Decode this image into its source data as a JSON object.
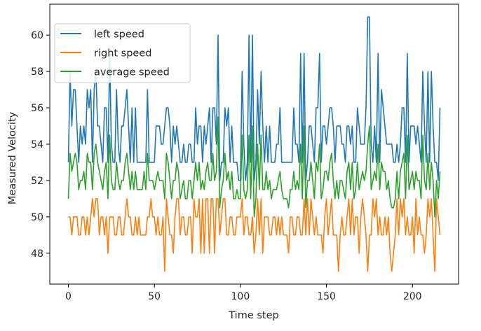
{
  "chart_data": {
    "type": "line",
    "xlabel": "Time step",
    "ylabel": "Measured Velocity",
    "xlim": [
      -10.8,
      226.8
    ],
    "ylim": [
      46.3,
      61.7
    ],
    "xticks": [
      0,
      50,
      100,
      150,
      200
    ],
    "yticks": [
      48,
      50,
      52,
      54,
      56,
      58,
      60
    ],
    "grid": false,
    "legend_position": "top-left",
    "series": [
      {
        "name": "left speed",
        "color": "#1f77b4",
        "values": [
          53,
          58,
          55,
          57,
          57,
          55,
          53,
          55,
          54,
          55,
          54,
          57,
          56,
          57,
          53,
          57,
          58,
          55,
          55,
          54,
          53,
          56,
          56,
          53,
          59,
          54,
          53,
          53,
          57,
          54,
          53,
          55,
          55,
          56,
          57,
          55,
          53,
          56,
          53,
          56,
          53,
          53,
          53,
          53,
          53,
          53,
          57,
          53,
          53,
          53,
          53,
          55,
          55,
          55,
          54,
          54,
          55,
          56,
          56,
          55,
          53,
          55,
          54,
          55,
          54,
          53,
          53,
          54,
          53,
          53,
          54,
          54,
          53,
          53,
          56,
          54,
          55,
          55,
          53,
          55,
          54,
          55,
          56,
          53,
          56,
          56,
          54,
          60,
          52,
          53,
          53,
          56,
          55,
          56,
          53,
          55,
          53,
          53,
          53,
          52,
          52,
          58,
          54,
          52,
          53,
          60,
          53,
          60,
          52,
          53,
          57,
          54,
          58,
          55,
          53,
          55,
          53,
          55,
          53,
          53,
          53,
          54,
          54,
          56,
          53,
          53,
          53,
          53,
          53,
          53,
          53,
          56,
          54,
          54,
          53,
          59,
          53,
          59,
          52,
          53,
          55,
          55,
          54,
          53,
          56,
          56,
          59,
          53,
          55,
          55,
          54,
          55,
          56,
          56,
          55,
          53,
          55,
          55,
          55,
          54,
          54,
          53,
          55,
          55,
          54,
          55,
          53,
          53,
          56,
          55,
          54,
          54,
          54,
          56,
          61,
          61,
          54,
          53,
          55,
          53,
          59,
          53,
          57,
          56,
          55,
          54,
          54,
          54,
          54,
          53,
          53,
          54,
          53,
          54,
          56,
          56,
          53,
          59,
          53,
          55,
          55,
          55,
          54,
          55,
          54,
          53,
          58,
          55,
          53,
          58,
          53,
          58,
          55,
          53,
          53,
          52,
          56
        ]
      },
      {
        "name": "right speed",
        "color": "#ff7f0e",
        "values": [
          50,
          50,
          49,
          50,
          50,
          50,
          49,
          49,
          50,
          50,
          49,
          50,
          49,
          50,
          51,
          50,
          51,
          51,
          49,
          50,
          50,
          49,
          50,
          48,
          50,
          50,
          50,
          49,
          49,
          50,
          50,
          49,
          49,
          50,
          51,
          50,
          50,
          49,
          49,
          50,
          49,
          50,
          49,
          49,
          49,
          49,
          50,
          50,
          51,
          50,
          50,
          49,
          50,
          49,
          49,
          50,
          47,
          51,
          50,
          49,
          49,
          48,
          50,
          51,
          51,
          49,
          50,
          50,
          49,
          49,
          50,
          50,
          48,
          51,
          50,
          50,
          51,
          48,
          51,
          48,
          51,
          51,
          48,
          51,
          51,
          48,
          51,
          51,
          49,
          50,
          51,
          51,
          49,
          49,
          50,
          50,
          49,
          49,
          50,
          50,
          50,
          51,
          49,
          50,
          50,
          49,
          49,
          50,
          48,
          49,
          51,
          49,
          51,
          48,
          50,
          50,
          50,
          49,
          49,
          50,
          50,
          49,
          50,
          49,
          50,
          49,
          49,
          49,
          48,
          50,
          50,
          49,
          49,
          50,
          50,
          49,
          49,
          51,
          49,
          51,
          49,
          51,
          50,
          49,
          50,
          49,
          49,
          49,
          48,
          50,
          51,
          49,
          50,
          51,
          49,
          49,
          49,
          47,
          49,
          50,
          49,
          49,
          50,
          51,
          49,
          51,
          49,
          50,
          50,
          48,
          50,
          51,
          50,
          49,
          47,
          49,
          49,
          51,
          50,
          51,
          49,
          50,
          49,
          49,
          50,
          49,
          50,
          48,
          47,
          48,
          49,
          51,
          49,
          51,
          50,
          51,
          49,
          50,
          49,
          49,
          50,
          48,
          51,
          49,
          50,
          49,
          49,
          48,
          49,
          51,
          50,
          51,
          49,
          47,
          51,
          50,
          49
        ]
      },
      {
        "name": "average speed",
        "color": "#2ca02c",
        "values": [
          51,
          53.5,
          52.5,
          53,
          53.5,
          53,
          51.5,
          52,
          52,
          52.5,
          51.5,
          53.5,
          53,
          53,
          51.5,
          53.5,
          54,
          53,
          52.5,
          52,
          51.5,
          52.5,
          53,
          51,
          54.5,
          52,
          51.5,
          51.5,
          53,
          52,
          51.5,
          52,
          52,
          53,
          53.5,
          52.5,
          51.5,
          52.5,
          51.5,
          52.5,
          51.5,
          51.5,
          51.5,
          51.5,
          52.5,
          51.5,
          53.5,
          52,
          52,
          52,
          51.5,
          52,
          52.5,
          52,
          52,
          52,
          51,
          53.5,
          53,
          52,
          51,
          52,
          52,
          53,
          52.5,
          51,
          51.5,
          52,
          51,
          51,
          52,
          52,
          51,
          52,
          53,
          52,
          53,
          51.5,
          52,
          51.5,
          52.5,
          53,
          52,
          52,
          53.5,
          52,
          52.5,
          55.5,
          50.5,
          51.5,
          52,
          53.5,
          52,
          52.5,
          51.5,
          52.5,
          51,
          51,
          51.5,
          51,
          51,
          54.5,
          51.5,
          51,
          51.5,
          54.5,
          51,
          55,
          50,
          51,
          54,
          51.5,
          54.5,
          51.5,
          51.5,
          52.5,
          51.5,
          52,
          51,
          51.5,
          51.5,
          51.5,
          52,
          52.5,
          51.5,
          51,
          51,
          51,
          50.5,
          51.5,
          51.5,
          52.5,
          51.5,
          52,
          51.5,
          54,
          51,
          55,
          50.5,
          52,
          52,
          53,
          52,
          51,
          53,
          52.5,
          54,
          51,
          51.5,
          52.5,
          52.5,
          52,
          53,
          53.5,
          52,
          51,
          52,
          51,
          52,
          52,
          51.5,
          51,
          52.5,
          53,
          51.5,
          53,
          51,
          51.5,
          53,
          51.5,
          52,
          52.5,
          52,
          52.5,
          54,
          55,
          51.5,
          52,
          52.5,
          52,
          54,
          51.5,
          53,
          52.5,
          52.5,
          51.5,
          52,
          51,
          50.5,
          50.5,
          51,
          52.5,
          51,
          52.5,
          53,
          53.5,
          51,
          54.5,
          51.5,
          52,
          52.5,
          51.5,
          52.5,
          52,
          52,
          51,
          54.5,
          52,
          51.5,
          53.5,
          51.5,
          53,
          52,
          50,
          52,
          51,
          52.5
        ]
      }
    ]
  }
}
